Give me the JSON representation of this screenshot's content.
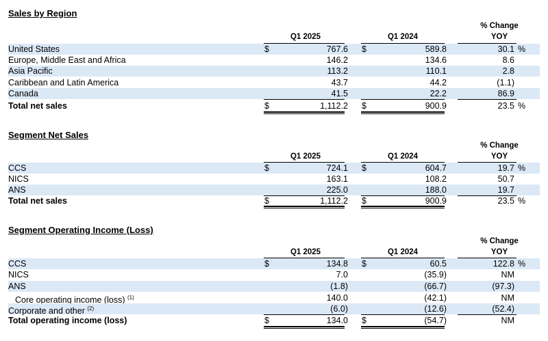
{
  "columns": {
    "q1_2025": "Q1 2025",
    "q1_2024": "Q1 2024",
    "change_line1": "% Change",
    "change_line2": "YOY"
  },
  "sales_by_region": {
    "title": "Sales by Region",
    "rows": [
      {
        "label": "United States",
        "dollar1": "$",
        "v2025": "767.6",
        "dollar2": "$",
        "v2024": "589.8",
        "change": "30.1",
        "pct": "%"
      },
      {
        "label": "Europe, Middle East and Africa",
        "dollar1": "",
        "v2025": "146.2",
        "dollar2": "",
        "v2024": "134.6",
        "change": "8.6",
        "pct": ""
      },
      {
        "label": "Asia Pacific",
        "dollar1": "",
        "v2025": "113.2",
        "dollar2": "",
        "v2024": "110.1",
        "change": "2.8",
        "pct": ""
      },
      {
        "label": "Caribbean and Latin America",
        "dollar1": "",
        "v2025": "43.7",
        "dollar2": "",
        "v2024": "44.2",
        "change": "(1.1)",
        "pct": ""
      },
      {
        "label": "Canada",
        "dollar1": "",
        "v2025": "41.5",
        "dollar2": "",
        "v2024": "22.2",
        "change": "86.9",
        "pct": ""
      }
    ],
    "total": {
      "label": "Total net sales",
      "dollar1": "$",
      "v2025": "1,112.2",
      "dollar2": "$",
      "v2024": "900.9",
      "change": "23.5",
      "pct": "%"
    }
  },
  "segment_net_sales": {
    "title": "Segment Net Sales",
    "rows": [
      {
        "label": "CCS",
        "dollar1": "$",
        "v2025": "724.1",
        "dollar2": "$",
        "v2024": "604.7",
        "change": "19.7",
        "pct": "%"
      },
      {
        "label": "NICS",
        "dollar1": "",
        "v2025": "163.1",
        "dollar2": "",
        "v2024": "108.2",
        "change": "50.7",
        "pct": ""
      },
      {
        "label": "ANS",
        "dollar1": "",
        "v2025": "225.0",
        "dollar2": "",
        "v2024": "188.0",
        "change": "19.7",
        "pct": ""
      }
    ],
    "total": {
      "label": "Total net sales",
      "dollar1": "$",
      "v2025": "1,112.2",
      "dollar2": "$",
      "v2024": "900.9",
      "change": "23.5",
      "pct": "%"
    }
  },
  "segment_operating_income": {
    "title": "Segment Operating Income (Loss)",
    "rows": [
      {
        "label": "CCS",
        "sup": "",
        "dollar1": "$",
        "v2025": "134.8",
        "dollar2": "$",
        "v2024": "60.5",
        "change": "122.8",
        "pct": "%"
      },
      {
        "label": "NICS",
        "sup": "",
        "dollar1": "",
        "v2025": "7.0",
        "dollar2": "",
        "v2024": "(35.9)",
        "change": "NM",
        "pct": ""
      },
      {
        "label": "ANS",
        "sup": "",
        "dollar1": "",
        "v2025": "(1.8)",
        "dollar2": "",
        "v2024": "(66.7)",
        "change": "(97.3)",
        "pct": ""
      },
      {
        "label": "Core operating income (loss)",
        "sup": "(1)",
        "dollar1": "",
        "v2025": "140.0",
        "dollar2": "",
        "v2024": "(42.1)",
        "change": "NM",
        "pct": ""
      },
      {
        "label": "Corporate and other",
        "sup": "(2)",
        "dollar1": "",
        "v2025": "(6.0)",
        "dollar2": "",
        "v2024": "(12.6)",
        "change": "(52.4)",
        "pct": ""
      }
    ],
    "total": {
      "label": "Total operating income (loss)",
      "dollar1": "$",
      "v2025": "134.0",
      "dollar2": "$",
      "v2024": "(54.7)",
      "change": "NM",
      "pct": ""
    }
  }
}
